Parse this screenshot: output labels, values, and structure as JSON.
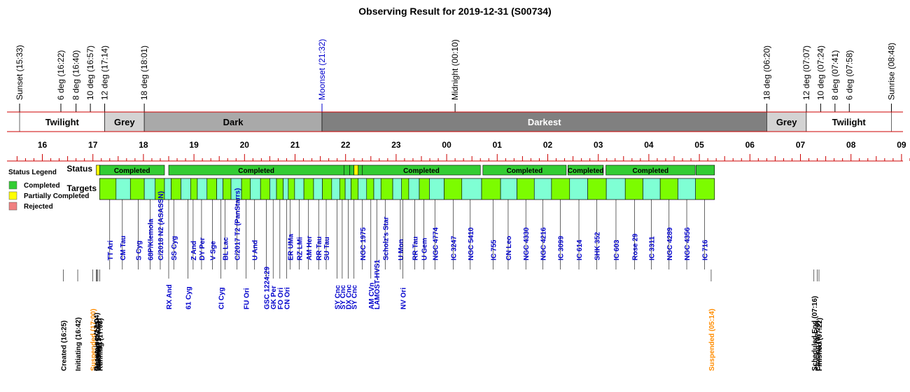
{
  "chart_data": {
    "type": "timeline",
    "title": "Observing Result for 2019-12-31 (S00734)",
    "twilight_events": [
      {
        "label": "Sunset (15:33)",
        "t": "15:33",
        "color": "#000000"
      },
      {
        "label": "6 deg (16:22)",
        "t": "16:22",
        "color": "#000000"
      },
      {
        "label": "8 deg (16:40)",
        "t": "16:40",
        "color": "#000000"
      },
      {
        "label": "10 deg (16:57)",
        "t": "16:57",
        "color": "#000000"
      },
      {
        "label": "12 deg (17:14)",
        "t": "17:14",
        "color": "#000000"
      },
      {
        "label": "18 deg (18:01)",
        "t": "18:01",
        "color": "#000000"
      },
      {
        "label": "Moonset (21:32)",
        "t": "21:32",
        "color": "#0000cc"
      },
      {
        "label": "Midnight (00:10)",
        "t": "00:10",
        "color": "#000000"
      },
      {
        "label": "18 deg (06:20)",
        "t": "06:20",
        "color": "#000000"
      },
      {
        "label": "12 deg (07:07)",
        "t": "07:07",
        "color": "#000000"
      },
      {
        "label": "10 deg (07:24)",
        "t": "07:24",
        "color": "#000000"
      },
      {
        "label": "8 deg (07:41)",
        "t": "07:41",
        "color": "#000000"
      },
      {
        "label": "6 deg (07:58)",
        "t": "07:58",
        "color": "#000000"
      },
      {
        "label": "Sunrise (08:48)",
        "t": "08:48",
        "color": "#000000"
      }
    ],
    "sky_bands": [
      {
        "label": "Twilight",
        "start": "15:33",
        "end": "17:14",
        "fill": "#ffffff",
        "text": "#000000"
      },
      {
        "label": "Grey",
        "start": "17:14",
        "end": "18:01",
        "fill": "#d3d3d3",
        "text": "#000000"
      },
      {
        "label": "Dark",
        "start": "18:01",
        "end": "21:32",
        "fill": "#a9a9a9",
        "text": "#000000"
      },
      {
        "label": "Darkest",
        "start": "21:32",
        "end": "06:20",
        "fill": "#808080",
        "text": "#ffffff"
      },
      {
        "label": "Grey",
        "start": "06:20",
        "end": "07:07",
        "fill": "#d3d3d3",
        "text": "#000000"
      },
      {
        "label": "Twilight",
        "start": "07:07",
        "end": "08:48",
        "fill": "#ffffff",
        "text": "#000000"
      }
    ],
    "hour_ticks": [
      "16",
      "17",
      "18",
      "19",
      "20",
      "21",
      "22",
      "23",
      "00",
      "01",
      "02",
      "03",
      "04",
      "05",
      "06",
      "07",
      "08",
      "09"
    ],
    "row_labels": {
      "status": "Status",
      "targets": "Targets"
    },
    "legend": {
      "title": "Status Legend",
      "items": [
        {
          "label": "Completed",
          "color": "#33cc33"
        },
        {
          "label": "Partially Completed",
          "color": "#ffff00"
        },
        {
          "label": "Rejected",
          "color": "#f08080"
        }
      ]
    },
    "status_segments": [
      {
        "label": "",
        "start": "17:04",
        "end": "17:08",
        "color": "#ffff00"
      },
      {
        "label": "Completed",
        "start": "17:08",
        "end": "18:25",
        "color": "#33cc33"
      },
      {
        "label": "Completed",
        "start": "18:30",
        "end": "21:58",
        "color": "#33cc33"
      },
      {
        "label": "",
        "start": "21:58",
        "end": "22:05",
        "color": "#33cc33"
      },
      {
        "label": "",
        "start": "22:05",
        "end": "22:10",
        "color": "#33cc33"
      },
      {
        "label": "",
        "start": "22:10",
        "end": "22:15",
        "color": "#ffff00"
      },
      {
        "label": "",
        "start": "22:15",
        "end": "22:20",
        "color": "#33cc33"
      },
      {
        "label": "Completed",
        "start": "22:20",
        "end": "00:40",
        "color": "#33cc33"
      },
      {
        "label": "Completed",
        "start": "00:43",
        "end": "02:22",
        "color": "#33cc33"
      },
      {
        "label": "Completed",
        "start": "02:24",
        "end": "03:06",
        "color": "#33cc33"
      },
      {
        "label": "Completed",
        "start": "03:09",
        "end": "04:55",
        "color": "#33cc33"
      },
      {
        "label": "",
        "start": "04:56",
        "end": "05:18",
        "color": "#33cc33"
      }
    ],
    "targets_upper": [
      {
        "name": "TT Ari",
        "t": "17:20"
      },
      {
        "name": "CM Tau",
        "t": "17:35"
      },
      {
        "name": "S Cyg",
        "t": "17:54"
      },
      {
        "name": "68P/Klemola",
        "t": "18:08"
      },
      {
        "name": "C/2018 N2 (ASASSN)",
        "t": "18:20"
      },
      {
        "name": "SS Cyg",
        "t": "18:36"
      },
      {
        "name": "Z And",
        "t": "18:59"
      },
      {
        "name": "DY Per",
        "t": "19:09"
      },
      {
        "name": "V Sge",
        "t": "19:22"
      },
      {
        "name": "BL Lac",
        "t": "19:37"
      },
      {
        "name": "C/2017 T2 (PanStarrs)",
        "t": "19:51"
      },
      {
        "name": "U And",
        "t": "20:12"
      },
      {
        "name": "ER UMa",
        "t": "20:54"
      },
      {
        "name": "RZ LMi",
        "t": "21:05"
      },
      {
        "name": "AM Her",
        "t": "21:16"
      },
      {
        "name": "RR Tau",
        "t": "21:28"
      },
      {
        "name": "SU Tau",
        "t": "21:37"
      },
      {
        "name": "NGC 1975",
        "t": "22:20"
      },
      {
        "name": "Scholz's Star",
        "t": "22:47"
      },
      {
        "name": "U Mon",
        "t": "23:05"
      },
      {
        "name": "RR Tau",
        "t": "23:22"
      },
      {
        "name": "U Gem",
        "t": "23:33"
      },
      {
        "name": "NGC 4774",
        "t": "23:46"
      },
      {
        "name": "IC 3247",
        "t": "00:08"
      },
      {
        "name": "NGC 5410",
        "t": "00:28"
      },
      {
        "name": "IC 755",
        "t": "00:55"
      },
      {
        "name": "CN Leo",
        "t": "01:13"
      },
      {
        "name": "NGC 4330",
        "t": "01:34"
      },
      {
        "name": "NGC 4216",
        "t": "01:54"
      },
      {
        "name": "IC 3099",
        "t": "02:15"
      },
      {
        "name": "IC 614",
        "t": "02:37"
      },
      {
        "name": "SHK 352",
        "t": "02:58"
      },
      {
        "name": "IC 603",
        "t": "03:21"
      },
      {
        "name": "Rose 29",
        "t": "03:43"
      },
      {
        "name": "IC 3311",
        "t": "04:03"
      },
      {
        "name": "NGC 4289",
        "t": "04:24"
      },
      {
        "name": "NGC 4356",
        "t": "04:45"
      },
      {
        "name": "IC 716",
        "t": "05:06"
      }
    ],
    "targets_lower": [
      {
        "name": "RX And",
        "t": "18:30"
      },
      {
        "name": "61 Cyg",
        "t": "18:53"
      },
      {
        "name": "CI Cyg",
        "t": "19:32"
      },
      {
        "name": "FU Ori",
        "t": "20:02"
      },
      {
        "name": "GSC 1224:29",
        "t": "20:26"
      },
      {
        "name": "GK Per",
        "t": "20:34"
      },
      {
        "name": "FO Ori",
        "t": "20:42"
      },
      {
        "name": "CN Ori",
        "t": "20:50"
      },
      {
        "name": "SY Cnc",
        "t": "21:50"
      },
      {
        "name": "SY Cnc",
        "t": "21:56"
      },
      {
        "name": "DX Cnc",
        "t": "22:03"
      },
      {
        "name": "SY Cnc",
        "t": "22:10"
      },
      {
        "name": "AM CVn",
        "t": "22:30"
      },
      {
        "name": "LAMOST-HVS1",
        "t": "22:37"
      },
      {
        "name": "NV Ori",
        "t": "23:08"
      }
    ],
    "run_events": [
      {
        "label": "Created (16:25)",
        "t": "16:25",
        "color": "#000000"
      },
      {
        "label": "Initiating (16:42)",
        "t": "16:42",
        "color": "#000000"
      },
      {
        "label": "Suspended (17:00)",
        "t": "17:00",
        "color": "#ff8c00"
      },
      {
        "label": "Resuming (17:04)",
        "t": "17:04",
        "color": "#000000"
      },
      {
        "label": "Opening (17:05)",
        "t": "17:05",
        "color": "#000000"
      },
      {
        "label": "Waiting (17:06)",
        "t": "17:06",
        "color": "#000000"
      },
      {
        "label": "Running (17:08)",
        "t": "17:08",
        "color": "#000000"
      },
      {
        "label": "Suspended (05:14)",
        "t": "05:14",
        "color": "#ff8c00"
      },
      {
        "label": "Scheduled End (07:16)",
        "t": "07:16",
        "color": "#000000"
      },
      {
        "label": "Closing (07:20)",
        "t": "07:20",
        "color": "#000000"
      },
      {
        "label": "Finished (07:22)",
        "t": "07:22",
        "color": "#000000"
      }
    ]
  }
}
